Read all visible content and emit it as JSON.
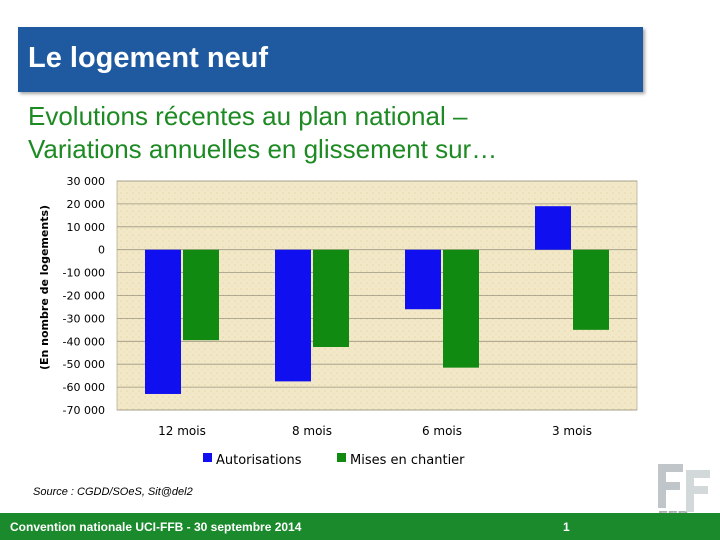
{
  "slide": {
    "title": "Le logement neuf",
    "subtitle_line1": "Evolutions récentes au plan national –",
    "subtitle_line2": "Variations annuelles en glissement sur…",
    "source": "Source : CGDD/SOeS, Sit@del2",
    "footer": "Convention nationale UCI-FFB - 30 septembre 2014",
    "page_number": "1",
    "logo_text": "FFB"
  },
  "colors": {
    "title_bar": "#1f5aa0",
    "subtitle": "#1e8a23",
    "footer": "#1b8a2c",
    "series_autorisations": "#0f0ff0",
    "series_mises": "#108a10",
    "plot_bg": "#f2e8c8"
  },
  "chart_data": {
    "type": "bar",
    "categories": [
      "12 mois",
      "8 mois",
      "6 mois",
      "3 mois"
    ],
    "series": [
      {
        "name": "Autorisations",
        "values": [
          -63000,
          -57500,
          -26000,
          19000
        ]
      },
      {
        "name": "Mises en chantier",
        "values": [
          -39500,
          -42500,
          -51500,
          -35000
        ]
      }
    ],
    "ylabel": "(En nombre de logements)",
    "ylim": [
      -70000,
      30000
    ],
    "yticks": [
      30000,
      20000,
      10000,
      0,
      -10000,
      -20000,
      -30000,
      -40000,
      -50000,
      -60000,
      -70000
    ],
    "ytick_labels": [
      "30 000",
      "20 000",
      "10 000",
      "0",
      "-10 000",
      "-20 000",
      "-30 000",
      "-40 000",
      "-50 000",
      "-60 000",
      "-70 000"
    ],
    "grid": true,
    "legend": "bottom"
  }
}
